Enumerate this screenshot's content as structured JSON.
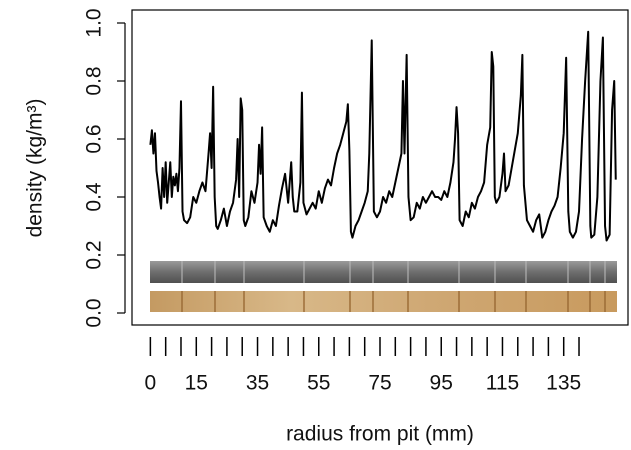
{
  "chart_data": {
    "type": "line",
    "xlabel": "radius from pit (mm)",
    "ylabel": "density (kg/m³)",
    "series": [
      {
        "color": "#000000",
        "x": [
          0,
          0.5,
          1,
          1.5,
          2,
          2.5,
          3,
          3.5,
          4,
          4.5,
          5,
          5.5,
          6,
          6.5,
          7,
          7.5,
          8,
          8.5,
          9,
          9.5,
          10,
          10.5,
          11,
          12,
          13,
          14,
          15,
          16,
          17,
          18,
          19,
          19.5,
          20,
          20.5,
          21,
          21.5,
          22,
          23,
          24,
          25,
          26,
          27,
          28,
          28.5,
          29,
          29.5,
          30,
          30.5,
          31,
          32,
          33,
          34,
          35,
          35.5,
          36,
          36.5,
          37,
          38,
          39,
          40,
          41,
          42,
          43,
          44,
          45,
          46,
          46.5,
          47,
          48,
          49,
          49.5,
          50,
          51,
          52,
          53,
          54,
          55,
          56,
          57,
          58,
          59,
          60,
          61,
          62,
          63,
          64,
          64.5,
          65,
          65.5,
          66,
          67,
          68,
          69,
          70,
          71,
          71.5,
          72.3,
          73,
          74,
          75,
          76,
          77,
          78,
          79,
          80,
          81,
          82,
          82.5,
          83,
          83.7,
          84.3,
          85,
          86,
          87,
          88,
          89,
          90,
          91,
          92,
          93,
          94,
          95,
          96,
          97,
          98,
          99,
          99.5,
          100,
          100.5,
          101,
          102,
          103,
          104,
          105,
          106,
          107,
          108,
          109,
          110,
          111,
          111.5,
          112,
          112.5,
          113,
          114,
          115,
          115.5,
          116,
          117,
          118,
          119,
          120,
          121,
          121.5,
          122,
          123,
          124,
          125,
          126,
          127,
          128,
          129,
          130,
          131,
          132,
          133,
          134,
          135,
          135.8,
          136.5,
          137,
          138,
          139,
          140,
          141,
          142,
          143,
          143.7,
          144,
          145,
          146,
          147,
          147.8,
          148.5,
          149,
          150,
          150.8,
          151.5,
          152
        ],
        "values": [
          0.58,
          0.63,
          0.55,
          0.62,
          0.49,
          0.45,
          0.4,
          0.36,
          0.5,
          0.4,
          0.52,
          0.38,
          0.45,
          0.52,
          0.4,
          0.47,
          0.44,
          0.48,
          0.42,
          0.5,
          0.73,
          0.35,
          0.32,
          0.31,
          0.33,
          0.4,
          0.38,
          0.42,
          0.45,
          0.42,
          0.55,
          0.62,
          0.5,
          0.78,
          0.4,
          0.3,
          0.29,
          0.32,
          0.36,
          0.3,
          0.35,
          0.38,
          0.46,
          0.6,
          0.4,
          0.74,
          0.7,
          0.32,
          0.3,
          0.33,
          0.42,
          0.38,
          0.45,
          0.58,
          0.48,
          0.64,
          0.33,
          0.3,
          0.28,
          0.32,
          0.3,
          0.37,
          0.43,
          0.48,
          0.38,
          0.52,
          0.4,
          0.35,
          0.35,
          0.45,
          0.76,
          0.38,
          0.34,
          0.36,
          0.38,
          0.36,
          0.42,
          0.38,
          0.43,
          0.46,
          0.44,
          0.5,
          0.55,
          0.58,
          0.62,
          0.66,
          0.72,
          0.56,
          0.28,
          0.26,
          0.3,
          0.32,
          0.35,
          0.38,
          0.42,
          0.55,
          0.94,
          0.35,
          0.33,
          0.35,
          0.4,
          0.38,
          0.42,
          0.4,
          0.45,
          0.5,
          0.55,
          0.8,
          0.55,
          0.89,
          0.4,
          0.32,
          0.33,
          0.38,
          0.36,
          0.4,
          0.38,
          0.4,
          0.42,
          0.4,
          0.4,
          0.39,
          0.42,
          0.4,
          0.45,
          0.52,
          0.6,
          0.71,
          0.62,
          0.32,
          0.3,
          0.35,
          0.33,
          0.38,
          0.36,
          0.4,
          0.42,
          0.45,
          0.58,
          0.64,
          0.9,
          0.85,
          0.4,
          0.38,
          0.4,
          0.48,
          0.55,
          0.42,
          0.44,
          0.5,
          0.56,
          0.62,
          0.75,
          0.89,
          0.44,
          0.32,
          0.3,
          0.28,
          0.32,
          0.34,
          0.26,
          0.28,
          0.32,
          0.35,
          0.37,
          0.4,
          0.5,
          0.62,
          0.88,
          0.35,
          0.28,
          0.26,
          0.28,
          0.35,
          0.6,
          0.8,
          0.97,
          0.3,
          0.26,
          0.27,
          0.4,
          0.8,
          0.95,
          0.3,
          0.25,
          0.27,
          0.7,
          0.8,
          0.46
        ]
      }
    ],
    "xlim": [
      -6,
      156
    ],
    "xticks": [
      0,
      15,
      35,
      55,
      75,
      95,
      115,
      135
    ],
    "xminorticks": [
      5,
      10,
      20,
      25,
      30,
      40,
      45,
      50,
      60,
      65,
      70,
      80,
      85,
      90,
      100,
      105,
      110,
      120,
      125,
      130,
      140
    ],
    "ylim": [
      0,
      1
    ],
    "yticks": [
      {
        "value": 0,
        "label": "0.0"
      },
      {
        "value": 0.2,
        "label": "0.2"
      },
      {
        "value": 0.4,
        "label": "0.4"
      },
      {
        "value": 0.6,
        "label": "0.6"
      },
      {
        "value": 0.8,
        "label": "0.8"
      },
      {
        "value": 1,
        "label": "1.0"
      }
    ]
  }
}
